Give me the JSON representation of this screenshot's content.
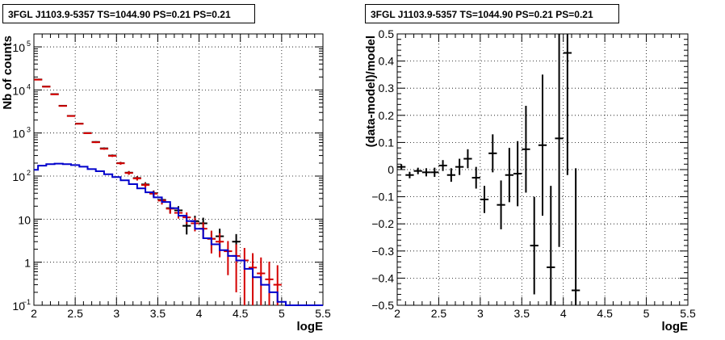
{
  "chart_data": [
    {
      "type": "line",
      "title": "3FGL J1103.9-5357 TS=1044.90 PS=0.21 PS=0.21",
      "xlabel": "logE",
      "ylabel": "Nb of counts",
      "xlim": [
        2,
        5.5
      ],
      "ylim": [
        0.1,
        200000
      ],
      "yscale": "log",
      "grid": true,
      "xticks": [
        "2",
        "2.5",
        "3",
        "3.5",
        "4",
        "4.5",
        "5",
        "5.5"
      ],
      "yticks": [
        {
          "value": 0.1,
          "label": "10",
          "exp": "−1"
        },
        {
          "value": 1,
          "label": "1",
          "exp": ""
        },
        {
          "value": 10,
          "label": "10",
          "exp": ""
        },
        {
          "value": 100,
          "label": "10",
          "exp": "2"
        },
        {
          "value": 1000,
          "label": "10",
          "exp": "3"
        },
        {
          "value": 10000,
          "label": "10",
          "exp": "4"
        },
        {
          "value": 100000,
          "label": "10",
          "exp": "5"
        }
      ],
      "series": [
        {
          "style": "errorbars",
          "color": "#000000",
          "x": [
            2.05,
            2.15,
            2.25,
            2.35,
            2.45,
            2.55,
            2.65,
            2.75,
            2.85,
            2.95,
            3.05,
            3.15,
            3.25,
            3.35,
            3.45,
            3.55,
            3.65,
            3.75,
            3.85,
            3.95,
            4.05,
            4.15,
            4.25,
            4.35,
            4.45,
            4.55,
            4.65,
            4.75,
            4.85,
            4.95
          ],
          "y": [
            17500,
            12000,
            8000,
            4300,
            2500,
            1650,
            1000,
            620,
            440,
            300,
            200,
            120,
            90,
            64,
            40,
            28,
            18,
            16,
            7,
            9,
            8,
            3.5,
            4,
            null,
            3,
            null,
            null,
            null,
            null,
            null
          ],
          "err": [
            130,
            110,
            90,
            65,
            50,
            40,
            30,
            25,
            21,
            17,
            14,
            11,
            9.5,
            8,
            6.3,
            5.3,
            4.2,
            4,
            2.6,
            3,
            2.8,
            1.6,
            2,
            null,
            1.5,
            null,
            null,
            null,
            null,
            null
          ]
        },
        {
          "style": "errorbars",
          "color": "#d40000",
          "x": [
            2.05,
            2.15,
            2.25,
            2.35,
            2.45,
            2.55,
            2.65,
            2.75,
            2.85,
            2.95,
            3.05,
            3.15,
            3.25,
            3.35,
            3.45,
            3.55,
            3.65,
            3.75,
            3.85,
            3.95,
            4.05,
            4.15,
            4.25,
            4.35,
            4.45,
            4.55,
            4.65,
            4.75,
            4.85,
            4.95
          ],
          "y": [
            17300,
            11900,
            7900,
            4250,
            2480,
            1640,
            990,
            610,
            430,
            295,
            198,
            118,
            88,
            62,
            39,
            27,
            17.5,
            14,
            11,
            8,
            6,
            3.5,
            3,
            1.8,
            1.4,
            1.1,
            0.75,
            0.55,
            0.4,
            0.3
          ],
          "err": [
            130,
            110,
            90,
            65,
            50,
            40,
            31,
            25,
            21,
            17,
            14,
            11,
            9.4,
            7.9,
            6.2,
            5.2,
            4.2,
            3.7,
            3.3,
            2.8,
            2.4,
            1.9,
            1.7,
            1.3,
            1.2,
            1.05,
            0.87,
            0.74,
            0.63,
            0.55
          ]
        },
        {
          "style": "step",
          "color": "#0000cc",
          "edges": [
            2.0,
            2.05,
            2.15,
            2.25,
            2.35,
            2.45,
            2.55,
            2.65,
            2.75,
            2.85,
            2.95,
            3.05,
            3.15,
            3.25,
            3.35,
            3.45,
            3.55,
            3.65,
            3.75,
            3.85,
            3.95,
            4.05,
            4.15,
            4.25,
            4.35,
            4.45,
            4.55,
            4.65,
            4.75,
            4.85,
            4.95,
            5.05,
            5.15,
            5.5
          ],
          "values": [
            140,
            175,
            190,
            195,
            190,
            180,
            165,
            145,
            130,
            110,
            95,
            80,
            65,
            52,
            42,
            32,
            25,
            18,
            12,
            9,
            6,
            3.6,
            2.6,
            1.9,
            1.4,
            1.1,
            0.7,
            0.45,
            0.3,
            0.2,
            0.12,
            0.1,
            0.1
          ]
        }
      ]
    },
    {
      "type": "scatter",
      "title": "3FGL J1103.9-5357 TS=1044.90 PS=0.21 PS=0.21",
      "xlabel": "logE",
      "ylabel": "(data-model)/model",
      "xlim": [
        2,
        5.5
      ],
      "ylim": [
        -0.5,
        0.5
      ],
      "grid": true,
      "xticks": [
        "2",
        "2.5",
        "3",
        "3.5",
        "4",
        "4.5",
        "5",
        "5.5"
      ],
      "yticks": [
        "−0.5",
        "−0.4",
        "−0.3",
        "−0.2",
        "−0.1",
        "0",
        "0.1",
        "0.2",
        "0.3",
        "0.4",
        "0.5"
      ],
      "series": [
        {
          "style": "errorbars",
          "color": "#000000",
          "x": [
            2.05,
            2.15,
            2.25,
            2.35,
            2.45,
            2.55,
            2.65,
            2.75,
            2.85,
            2.95,
            3.05,
            3.15,
            3.25,
            3.35,
            3.45,
            3.55,
            3.65,
            3.75,
            3.85,
            3.95,
            4.05,
            4.15
          ],
          "y": [
            0.01,
            -0.02,
            -0.005,
            -0.01,
            -0.01,
            0.015,
            -0.02,
            0.01,
            0.04,
            -0.03,
            -0.11,
            0.06,
            -0.13,
            -0.02,
            -0.015,
            0.075,
            -0.28,
            0.09,
            -0.36,
            0.115,
            0.43,
            -0.445
          ],
          "err": [
            0.01,
            0.012,
            0.012,
            0.015,
            0.017,
            0.02,
            0.025,
            0.03,
            0.035,
            0.04,
            0.05,
            0.07,
            0.09,
            0.1,
            0.12,
            0.16,
            0.18,
            0.26,
            0.3,
            0.4,
            0.45,
            0.45
          ]
        }
      ]
    }
  ]
}
